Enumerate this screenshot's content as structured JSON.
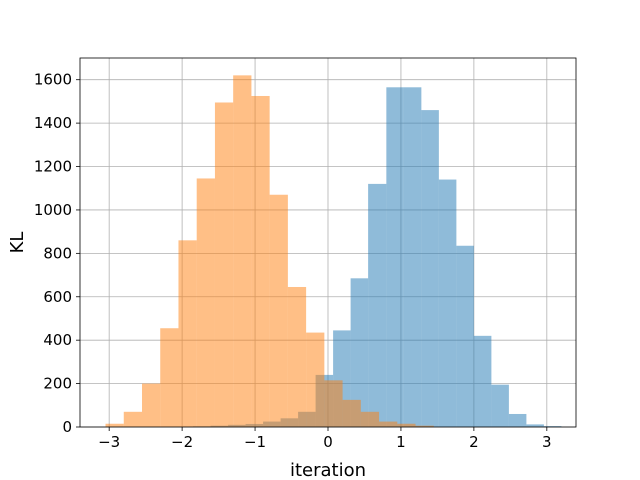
{
  "chart_data": {
    "type": "histogram",
    "title": "",
    "xlabel": "iteration",
    "ylabel": "KL",
    "xlim": [
      -3.4,
      3.4
    ],
    "ylim": [
      0,
      1700
    ],
    "xticks": [
      -3,
      -2,
      -1,
      0,
      1,
      2,
      3
    ],
    "xtick_labels": [
      "−3",
      "−2",
      "−1",
      "0",
      "1",
      "2",
      "3"
    ],
    "yticks": [
      0,
      200,
      400,
      600,
      800,
      1000,
      1200,
      1400,
      1600
    ],
    "ytick_labels": [
      "0",
      "200",
      "400",
      "600",
      "800",
      "1000",
      "1200",
      "1400",
      "1600"
    ],
    "grid": true,
    "series": [
      {
        "color": "#1f77b4",
        "opacity": 0.5,
        "bins": [
          {
            "x0": -1.85,
            "x1": -1.61,
            "y": 3
          },
          {
            "x0": -1.61,
            "x1": -1.37,
            "y": 6
          },
          {
            "x0": -1.37,
            "x1": -1.13,
            "y": 10
          },
          {
            "x0": -1.13,
            "x1": -0.89,
            "y": 14
          },
          {
            "x0": -0.89,
            "x1": -0.65,
            "y": 25
          },
          {
            "x0": -0.65,
            "x1": -0.41,
            "y": 40
          },
          {
            "x0": -0.41,
            "x1": -0.17,
            "y": 70
          },
          {
            "x0": -0.17,
            "x1": 0.07,
            "y": 240
          },
          {
            "x0": 0.07,
            "x1": 0.31,
            "y": 445
          },
          {
            "x0": 0.31,
            "x1": 0.55,
            "y": 685
          },
          {
            "x0": 0.55,
            "x1": 0.8,
            "y": 1120
          },
          {
            "x0": 0.8,
            "x1": 1.04,
            "y": 1565
          },
          {
            "x0": 1.04,
            "x1": 1.28,
            "y": 1565
          },
          {
            "x0": 1.28,
            "x1": 1.52,
            "y": 1460
          },
          {
            "x0": 1.52,
            "x1": 1.76,
            "y": 1140
          },
          {
            "x0": 1.76,
            "x1": 2.0,
            "y": 835
          },
          {
            "x0": 2.0,
            "x1": 2.24,
            "y": 420
          },
          {
            "x0": 2.24,
            "x1": 2.48,
            "y": 195
          },
          {
            "x0": 2.48,
            "x1": 2.72,
            "y": 60
          },
          {
            "x0": 2.72,
            "x1": 2.96,
            "y": 12
          },
          {
            "x0": 2.96,
            "x1": 3.2,
            "y": 4
          }
        ]
      },
      {
        "color": "#ff7f0e",
        "opacity": 0.5,
        "bins": [
          {
            "x0": -3.05,
            "x1": -2.8,
            "y": 15
          },
          {
            "x0": -2.8,
            "x1": -2.55,
            "y": 70
          },
          {
            "x0": -2.55,
            "x1": -2.3,
            "y": 200
          },
          {
            "x0": -2.3,
            "x1": -2.05,
            "y": 455
          },
          {
            "x0": -2.05,
            "x1": -1.8,
            "y": 860
          },
          {
            "x0": -1.8,
            "x1": -1.55,
            "y": 1145
          },
          {
            "x0": -1.55,
            "x1": -1.3,
            "y": 1495
          },
          {
            "x0": -1.3,
            "x1": -1.05,
            "y": 1620
          },
          {
            "x0": -1.05,
            "x1": -0.8,
            "y": 1525
          },
          {
            "x0": -0.8,
            "x1": -0.55,
            "y": 1070
          },
          {
            "x0": -0.55,
            "x1": -0.3,
            "y": 645
          },
          {
            "x0": -0.3,
            "x1": -0.05,
            "y": 435
          },
          {
            "x0": -0.05,
            "x1": 0.2,
            "y": 215
          },
          {
            "x0": 0.2,
            "x1": 0.45,
            "y": 125
          },
          {
            "x0": 0.45,
            "x1": 0.7,
            "y": 70
          },
          {
            "x0": 0.7,
            "x1": 0.95,
            "y": 25
          },
          {
            "x0": 0.95,
            "x1": 1.2,
            "y": 15
          },
          {
            "x0": 1.2,
            "x1": 1.45,
            "y": 6
          }
        ]
      }
    ]
  }
}
